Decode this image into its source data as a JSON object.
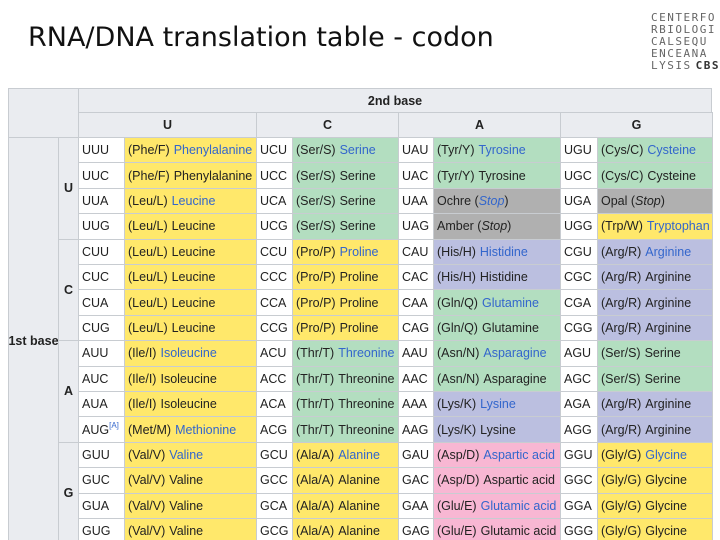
{
  "title": "RNA/DNA translation table - codon",
  "logo": {
    "lines": [
      "CENTERFO",
      "RBIOLOGI",
      "CALSEQU",
      "ENCEANA",
      "LYSIS"
    ],
    "mark": "CBS"
  },
  "table": {
    "header": "2nd base",
    "row_header": "1st base",
    "bases": [
      "U",
      "C",
      "A",
      "G"
    ],
    "link_color": "#3366cc",
    "groups": [
      {
        "rows": [
          [
            {
              "codon": "UUU",
              "abbr": "(Phe/F)",
              "name": "Phenylalanine",
              "fill": "#ffe86b",
              "link": true
            },
            {
              "codon": "UCU",
              "abbr": "(Ser/S)",
              "name": "Serine",
              "fill": "#b3dec0",
              "link": true
            },
            {
              "codon": "UAU",
              "abbr": "(Tyr/Y)",
              "name": "Tyrosine",
              "fill": "#b3dec0",
              "link": true
            },
            {
              "codon": "UGU",
              "abbr": "(Cys/C)",
              "name": "Cysteine",
              "fill": "#b3dec0",
              "link": true
            }
          ],
          [
            {
              "codon": "UUC",
              "abbr": "(Phe/F)",
              "name": "Phenylalanine",
              "fill": "#ffe86b"
            },
            {
              "codon": "UCC",
              "abbr": "(Ser/S)",
              "name": "Serine",
              "fill": "#b3dec0"
            },
            {
              "codon": "UAC",
              "abbr": "(Tyr/Y)",
              "name": "Tyrosine",
              "fill": "#b3dec0"
            },
            {
              "codon": "UGC",
              "abbr": "(Cys/C)",
              "name": "Cysteine",
              "fill": "#b3dec0"
            }
          ],
          [
            {
              "codon": "UUA",
              "abbr": "(Leu/L)",
              "name": "Leucine",
              "fill": "#ffe86b",
              "link": true
            },
            {
              "codon": "UCA",
              "abbr": "(Ser/S)",
              "name": "Serine",
              "fill": "#b3dec0"
            },
            {
              "codon": "UAA",
              "abbr": "Ochre (",
              "name": "Stop",
              "after": ")",
              "fill": "#b0b0b0",
              "italic": true,
              "link": true
            },
            {
              "codon": "UGA",
              "abbr": "Opal (",
              "name": "Stop",
              "after": ")",
              "fill": "#b0b0b0",
              "italic": true
            }
          ],
          [
            {
              "codon": "UUG",
              "abbr": "(Leu/L)",
              "name": "Leucine",
              "fill": "#ffe86b"
            },
            {
              "codon": "UCG",
              "abbr": "(Ser/S)",
              "name": "Serine",
              "fill": "#b3dec0"
            },
            {
              "codon": "UAG",
              "abbr": "Amber (",
              "name": "Stop",
              "after": ")",
              "fill": "#b0b0b0",
              "italic": true
            },
            {
              "codon": "UGG",
              "abbr": "(Trp/W)",
              "name": "Tryptophan",
              "fill": "#ffe86b",
              "link": true
            }
          ]
        ]
      },
      {
        "rows": [
          [
            {
              "codon": "CUU",
              "abbr": "(Leu/L)",
              "name": "Leucine",
              "fill": "#ffe86b"
            },
            {
              "codon": "CCU",
              "abbr": "(Pro/P)",
              "name": "Proline",
              "fill": "#ffe86b",
              "link": true
            },
            {
              "codon": "CAU",
              "abbr": "(His/H)",
              "name": "Histidine",
              "fill": "#bbbfe0",
              "link": true
            },
            {
              "codon": "CGU",
              "abbr": "(Arg/R)",
              "name": "Arginine",
              "fill": "#bbbfe0",
              "link": true
            }
          ],
          [
            {
              "codon": "CUC",
              "abbr": "(Leu/L)",
              "name": "Leucine",
              "fill": "#ffe86b"
            },
            {
              "codon": "CCC",
              "abbr": "(Pro/P)",
              "name": "Proline",
              "fill": "#ffe86b"
            },
            {
              "codon": "CAC",
              "abbr": "(His/H)",
              "name": "Histidine",
              "fill": "#bbbfe0"
            },
            {
              "codon": "CGC",
              "abbr": "(Arg/R)",
              "name": "Arginine",
              "fill": "#bbbfe0"
            }
          ],
          [
            {
              "codon": "CUA",
              "abbr": "(Leu/L)",
              "name": "Leucine",
              "fill": "#ffe86b"
            },
            {
              "codon": "CCA",
              "abbr": "(Pro/P)",
              "name": "Proline",
              "fill": "#ffe86b"
            },
            {
              "codon": "CAA",
              "abbr": "(Gln/Q)",
              "name": "Glutamine",
              "fill": "#b3dec0",
              "link": true
            },
            {
              "codon": "CGA",
              "abbr": "(Arg/R)",
              "name": "Arginine",
              "fill": "#bbbfe0"
            }
          ],
          [
            {
              "codon": "CUG",
              "abbr": "(Leu/L)",
              "name": "Leucine",
              "fill": "#ffe86b"
            },
            {
              "codon": "CCG",
              "abbr": "(Pro/P)",
              "name": "Proline",
              "fill": "#ffe86b"
            },
            {
              "codon": "CAG",
              "abbr": "(Gln/Q)",
              "name": "Glutamine",
              "fill": "#b3dec0"
            },
            {
              "codon": "CGG",
              "abbr": "(Arg/R)",
              "name": "Arginine",
              "fill": "#bbbfe0"
            }
          ]
        ]
      },
      {
        "rows": [
          [
            {
              "codon": "AUU",
              "abbr": "(Ile/I)",
              "name": "Isoleucine",
              "fill": "#ffe86b",
              "link": true
            },
            {
              "codon": "ACU",
              "abbr": "(Thr/T)",
              "name": "Threonine",
              "fill": "#b3dec0",
              "link": true
            },
            {
              "codon": "AAU",
              "abbr": "(Asn/N)",
              "name": "Asparagine",
              "fill": "#b3dec0",
              "link": true
            },
            {
              "codon": "AGU",
              "abbr": "(Ser/S)",
              "name": "Serine",
              "fill": "#b3dec0"
            }
          ],
          [
            {
              "codon": "AUC",
              "abbr": "(Ile/I)",
              "name": "Isoleucine",
              "fill": "#ffe86b"
            },
            {
              "codon": "ACC",
              "abbr": "(Thr/T)",
              "name": "Threonine",
              "fill": "#b3dec0"
            },
            {
              "codon": "AAC",
              "abbr": "(Asn/N)",
              "name": "Asparagine",
              "fill": "#b3dec0"
            },
            {
              "codon": "AGC",
              "abbr": "(Ser/S)",
              "name": "Serine",
              "fill": "#b3dec0"
            }
          ],
          [
            {
              "codon": "AUA",
              "abbr": "(Ile/I)",
              "name": "Isoleucine",
              "fill": "#ffe86b"
            },
            {
              "codon": "ACA",
              "abbr": "(Thr/T)",
              "name": "Threonine",
              "fill": "#b3dec0"
            },
            {
              "codon": "AAA",
              "abbr": "(Lys/K)",
              "name": "Lysine",
              "fill": "#bbbfe0",
              "link": true
            },
            {
              "codon": "AGA",
              "abbr": "(Arg/R)",
              "name": "Arginine",
              "fill": "#bbbfe0"
            }
          ],
          [
            {
              "codon": "AUG",
              "note": "[A]",
              "abbr": "(Met/M)",
              "name": "Methionine",
              "fill": "#ffe86b",
              "link": true
            },
            {
              "codon": "ACG",
              "abbr": "(Thr/T)",
              "name": "Threonine",
              "fill": "#b3dec0"
            },
            {
              "codon": "AAG",
              "abbr": "(Lys/K)",
              "name": "Lysine",
              "fill": "#bbbfe0"
            },
            {
              "codon": "AGG",
              "abbr": "(Arg/R)",
              "name": "Arginine",
              "fill": "#bbbfe0"
            }
          ]
        ]
      },
      {
        "rows": [
          [
            {
              "codon": "GUU",
              "abbr": "(Val/V)",
              "name": "Valine",
              "fill": "#ffe86b",
              "link": true
            },
            {
              "codon": "GCU",
              "abbr": "(Ala/A)",
              "name": "Alanine",
              "fill": "#ffe86b",
              "link": true
            },
            {
              "codon": "GAU",
              "abbr": "(Asp/D)",
              "name": "Aspartic acid",
              "fill": "#f8b7d3",
              "link": true
            },
            {
              "codon": "GGU",
              "abbr": "(Gly/G)",
              "name": "Glycine",
              "fill": "#ffe86b",
              "link": true
            }
          ],
          [
            {
              "codon": "GUC",
              "abbr": "(Val/V)",
              "name": "Valine",
              "fill": "#ffe86b"
            },
            {
              "codon": "GCC",
              "abbr": "(Ala/A)",
              "name": "Alanine",
              "fill": "#ffe86b"
            },
            {
              "codon": "GAC",
              "abbr": "(Asp/D)",
              "name": "Aspartic acid",
              "fill": "#f8b7d3"
            },
            {
              "codon": "GGC",
              "abbr": "(Gly/G)",
              "name": "Glycine",
              "fill": "#ffe86b"
            }
          ],
          [
            {
              "codon": "GUA",
              "abbr": "(Val/V)",
              "name": "Valine",
              "fill": "#ffe86b"
            },
            {
              "codon": "GCA",
              "abbr": "(Ala/A)",
              "name": "Alanine",
              "fill": "#ffe86b"
            },
            {
              "codon": "GAA",
              "abbr": "(Glu/E)",
              "name": "Glutamic acid",
              "fill": "#f8b7d3",
              "link": true
            },
            {
              "codon": "GGA",
              "abbr": "(Gly/G)",
              "name": "Glycine",
              "fill": "#ffe86b"
            }
          ],
          [
            {
              "codon": "GUG",
              "abbr": "(Val/V)",
              "name": "Valine",
              "fill": "#ffe86b"
            },
            {
              "codon": "GCG",
              "abbr": "(Ala/A)",
              "name": "Alanine",
              "fill": "#ffe86b"
            },
            {
              "codon": "GAG",
              "abbr": "(Glu/E)",
              "name": "Glutamic acid",
              "fill": "#f8b7d3"
            },
            {
              "codon": "GGG",
              "abbr": "(Gly/G)",
              "name": "Glycine",
              "fill": "#ffe86b"
            }
          ]
        ]
      }
    ]
  }
}
